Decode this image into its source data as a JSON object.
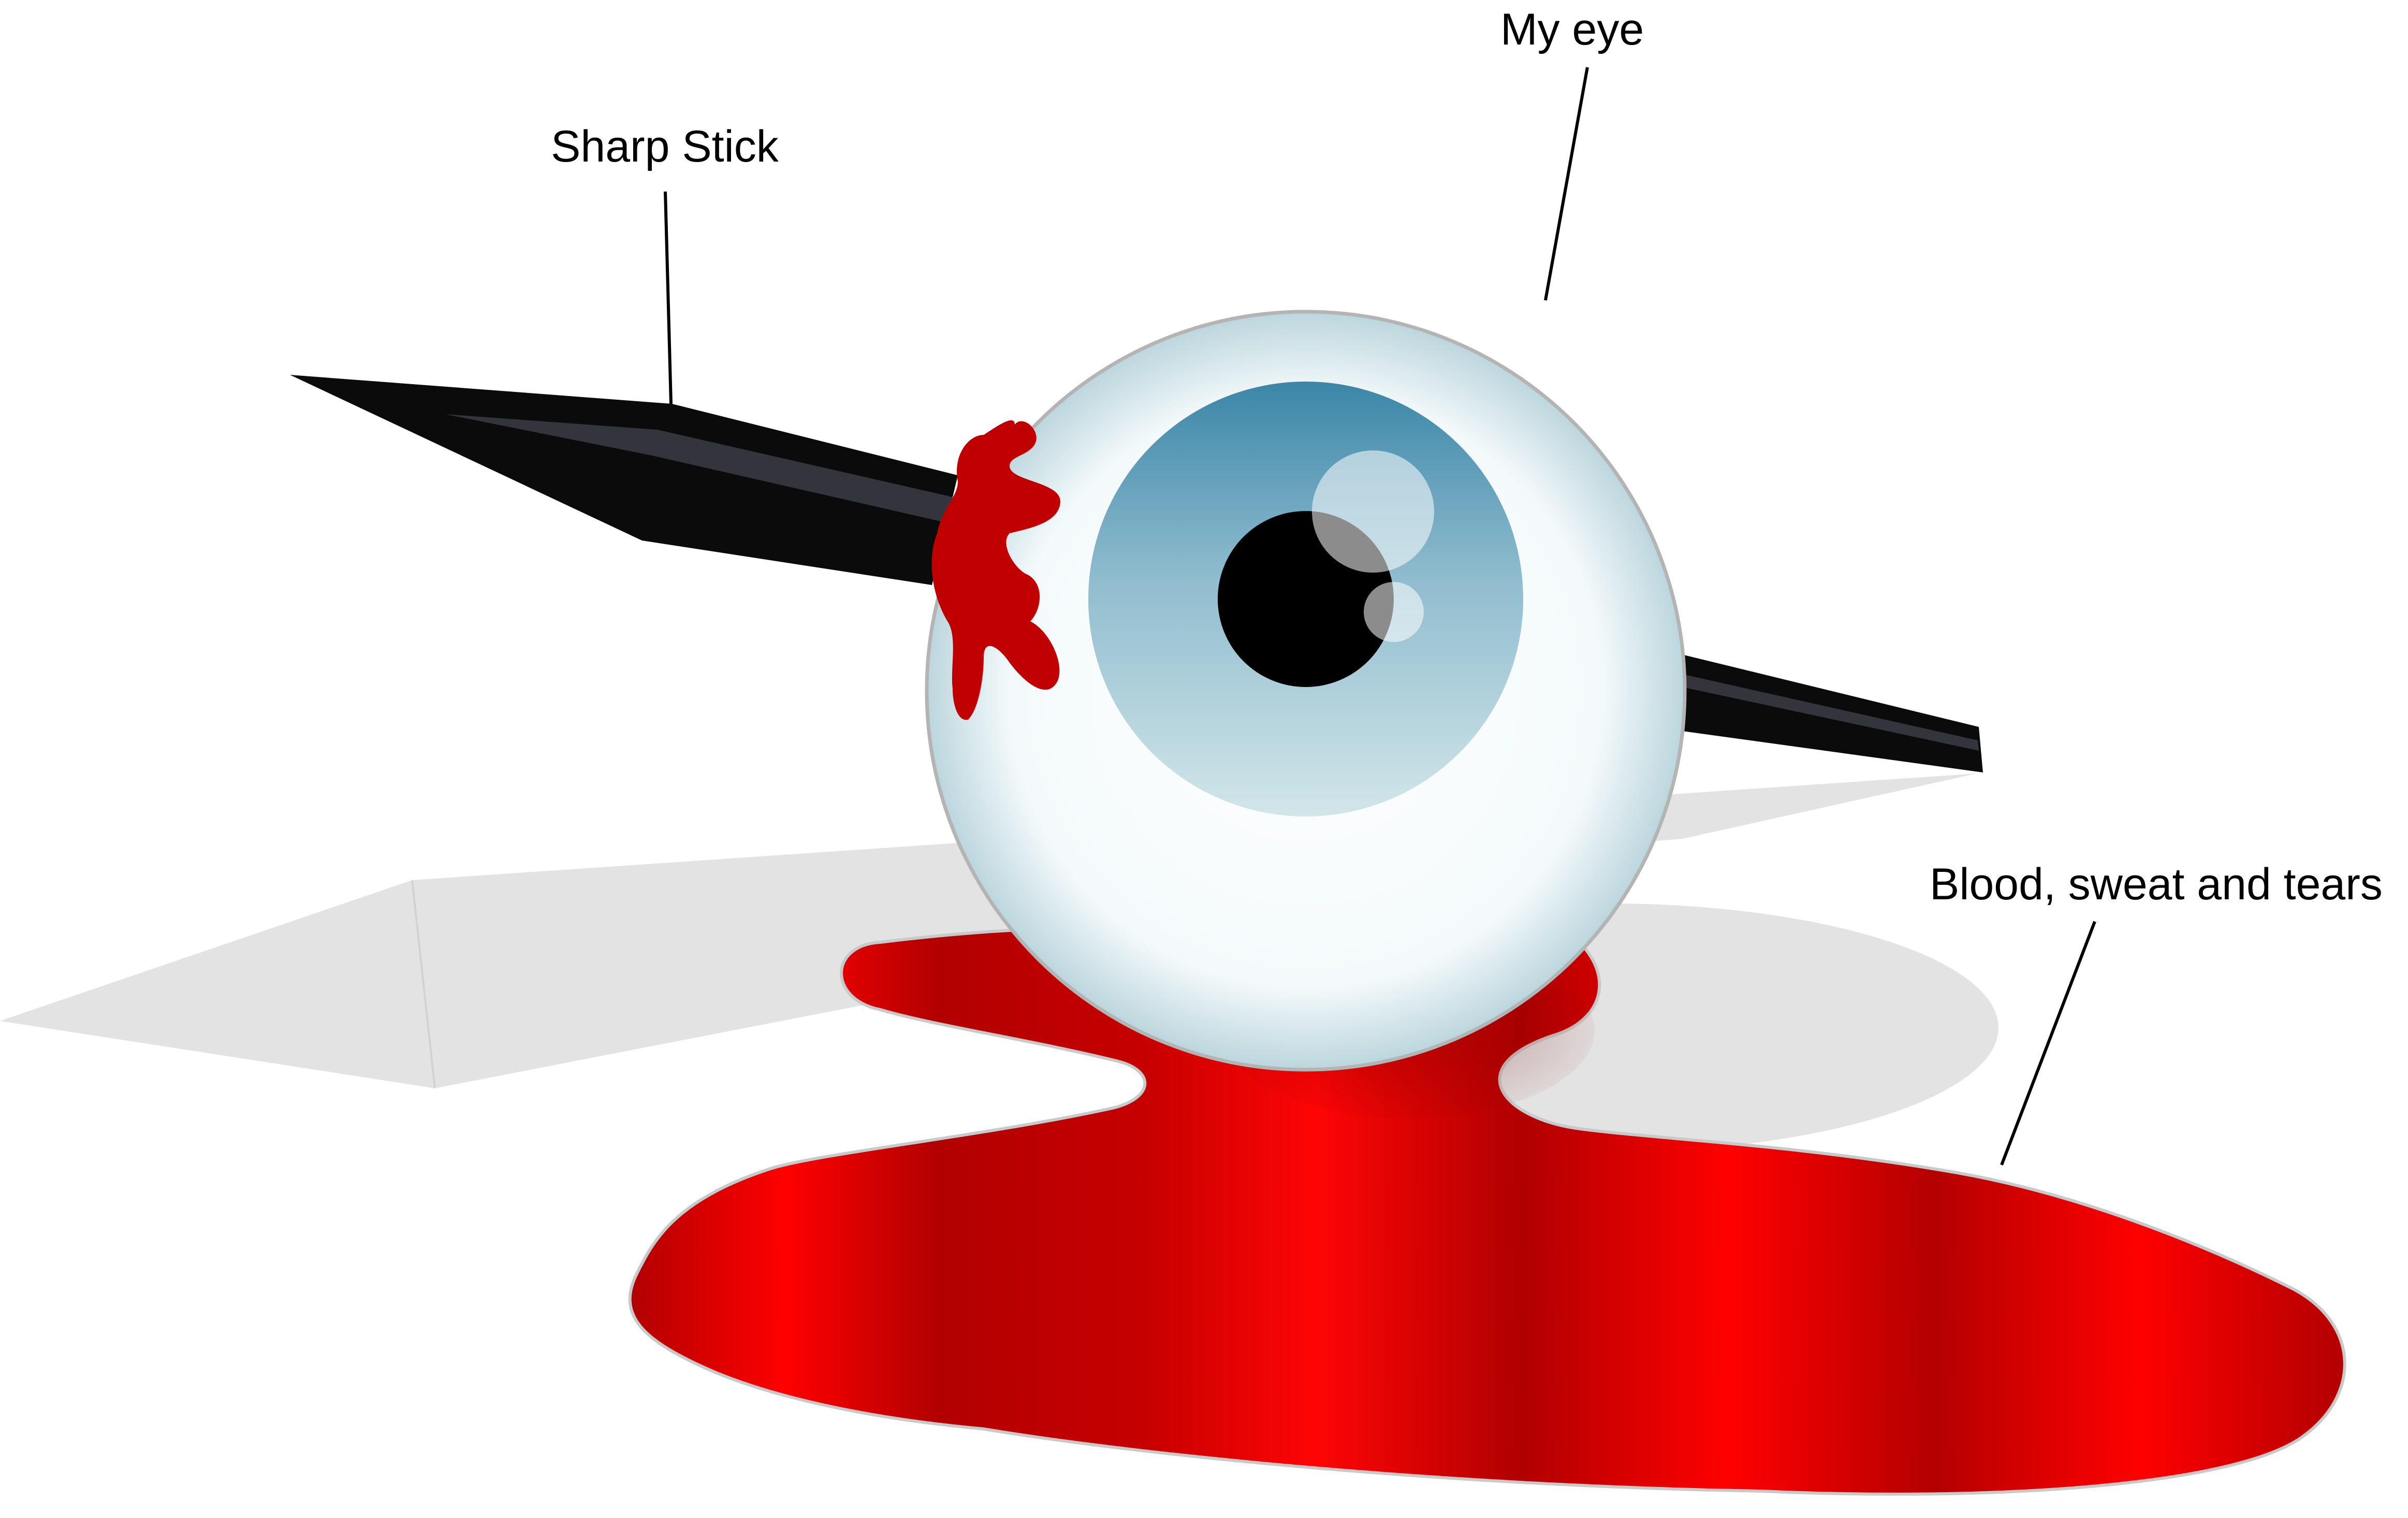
{
  "labels": {
    "my_eye": "My eye",
    "sharp_stick": "Sharp Stick",
    "blood": "Blood, sweat and tears"
  },
  "colors": {
    "background": "#ffffff",
    "shadow": "#e3e3e3",
    "blood_dark": "#b20000",
    "blood_bright": "#ff0000",
    "stick": "#0b0b0b",
    "stick_highlight": "#34343c",
    "sclera": "#ffffff",
    "sclera_edge": "#bcd6dd",
    "iris_top": "#3b86a8",
    "iris_bottom": "#d2e6e9",
    "pupil": "#000000",
    "leader_line": "#000000"
  },
  "icons": {
    "eye": "eyeball-icon",
    "stick": "sharp-stick-icon",
    "puddle": "blood-puddle-icon"
  }
}
